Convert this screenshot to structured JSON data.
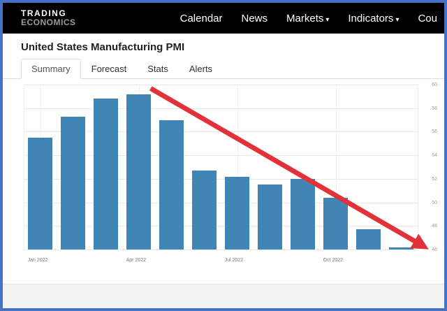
{
  "frame": {
    "border_color": "#4472c4"
  },
  "navbar": {
    "bg": "#000000",
    "text_color": "#ffffff",
    "logo": {
      "line1": "TRADING",
      "line2": "ECONOMICS"
    },
    "items": [
      {
        "label": "Calendar",
        "caret": false
      },
      {
        "label": "News",
        "caret": false
      },
      {
        "label": "Markets",
        "caret": true
      },
      {
        "label": "Indicators",
        "caret": true
      },
      {
        "label": "Cou",
        "caret": false
      }
    ]
  },
  "page": {
    "title": "United States Manufacturing PMI"
  },
  "tabs": [
    {
      "label": "Summary",
      "active": true
    },
    {
      "label": "Forecast",
      "active": false
    },
    {
      "label": "Stats",
      "active": false
    },
    {
      "label": "Alerts",
      "active": false
    }
  ],
  "chart_data": {
    "type": "bar",
    "title": "United States Manufacturing PMI",
    "categories": [
      "Jan 2022",
      "Feb 2022",
      "Mar 2022",
      "Apr 2022",
      "May 2022",
      "Jun 2022",
      "Jul 2022",
      "Aug 2022",
      "Sep 2022",
      "Oct 2022",
      "Nov 2022",
      "Dec 2022"
    ],
    "values": [
      55.5,
      57.3,
      58.8,
      59.2,
      57.0,
      52.7,
      52.2,
      51.5,
      52.0,
      50.4,
      47.7,
      46.2
    ],
    "x_tick_indices": [
      0,
      3,
      6,
      9
    ],
    "x_tick_labels": [
      "Jan 2022",
      "Apr 2022",
      "Jul 2022",
      "Oct 2022"
    ],
    "y_ticks": [
      46,
      48,
      50,
      52,
      54,
      56,
      58,
      60
    ],
    "ylim": [
      46,
      60
    ],
    "bar_color": "#4185b4",
    "grid": true,
    "y_axis_side": "right",
    "annotation_arrow": {
      "color": "#e03238",
      "x1": 0.335,
      "y1": 0.05,
      "x2": 0.952,
      "y2": 0.885
    }
  }
}
